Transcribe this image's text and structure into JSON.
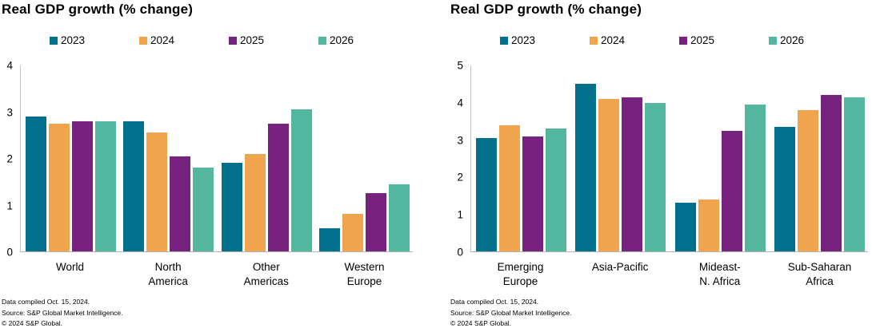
{
  "page_title": "Real GDP growth charts",
  "colors": {
    "background": "#FFFFFF",
    "text": "#000000",
    "axis_line": "#C3C3C3",
    "baseline": "#B3B3B3",
    "series_2023": "#00708C",
    "series_2024": "#F0A44E",
    "series_2025": "#77227F",
    "series_2026": "#53B7A0"
  },
  "footnote": {
    "lines": [
      "Data compiled Oct. 15, 2024.",
      "Source: S&P Global Market Intelligence.",
      "© 2024 S&P Global."
    ]
  },
  "chart_data": [
    {
      "type": "bar",
      "title": "Real GDP growth (% change)",
      "xlabel": "",
      "ylabel": "",
      "ylim": [
        0,
        4
      ],
      "yticks": [
        0,
        1,
        2,
        3,
        4
      ],
      "grid": false,
      "legend_position": "top",
      "categories": [
        "World",
        "North America",
        "Other Americas",
        "Western Europe"
      ],
      "category_lines": [
        [
          "World"
        ],
        [
          "North",
          "America"
        ],
        [
          "Other",
          "Americas"
        ],
        [
          "Western",
          "Europe"
        ]
      ],
      "series": [
        {
          "name": "2023",
          "color": "#00708C",
          "values": [
            2.9,
            2.8,
            1.9,
            0.5
          ]
        },
        {
          "name": "2024",
          "color": "#F0A44E",
          "values": [
            2.75,
            2.55,
            2.1,
            0.8
          ]
        },
        {
          "name": "2025",
          "color": "#77227F",
          "values": [
            2.8,
            2.05,
            2.75,
            1.25
          ]
        },
        {
          "name": "2026",
          "color": "#53B7A0",
          "values": [
            2.8,
            1.8,
            3.05,
            1.45
          ]
        }
      ]
    },
    {
      "type": "bar",
      "title": "Real GDP growth (% change)",
      "xlabel": "",
      "ylabel": "",
      "ylim": [
        0,
        5
      ],
      "yticks": [
        0,
        1,
        2,
        3,
        4,
        5
      ],
      "grid": false,
      "legend_position": "top",
      "categories": [
        "Emerging Europe",
        "Asia-Pacific",
        "Mideast-N. Africa",
        "Sub-Saharan Africa"
      ],
      "category_lines": [
        [
          "Emerging",
          "Europe"
        ],
        [
          "Asia-Pacific"
        ],
        [
          "Mideast-",
          "N. Africa"
        ],
        [
          "Sub-Saharan",
          "Africa"
        ]
      ],
      "series": [
        {
          "name": "2023",
          "color": "#00708C",
          "values": [
            3.05,
            4.5,
            1.3,
            3.35
          ]
        },
        {
          "name": "2024",
          "color": "#F0A44E",
          "values": [
            3.4,
            4.1,
            1.4,
            3.8
          ]
        },
        {
          "name": "2025",
          "color": "#77227F",
          "values": [
            3.1,
            4.15,
            3.25,
            4.2
          ]
        },
        {
          "name": "2026",
          "color": "#53B7A0",
          "values": [
            3.3,
            4.0,
            3.95,
            4.15
          ]
        }
      ]
    }
  ]
}
